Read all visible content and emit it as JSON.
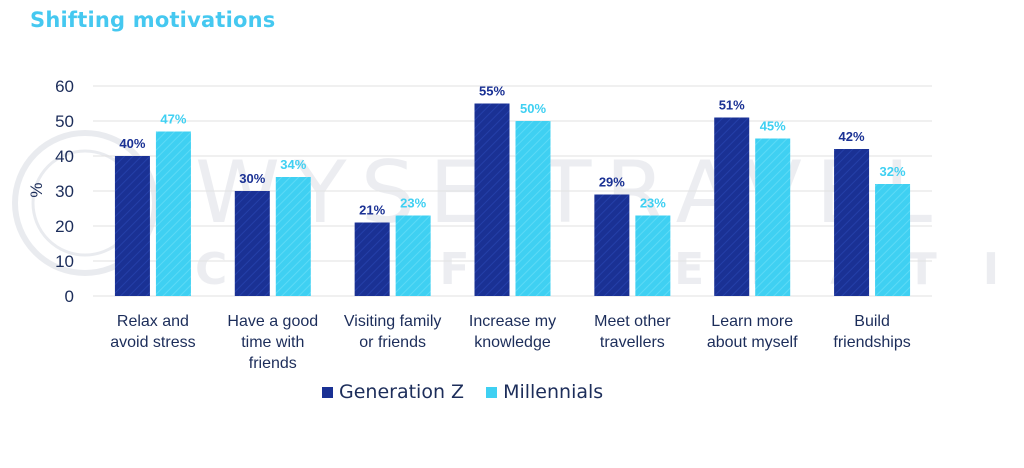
{
  "title": "Shifting motivations",
  "colors": {
    "gen_z": "#1a3194",
    "millennials": "#3fd0f2",
    "title": "#45c8f0",
    "axis_text": "#1c2d5a",
    "grid": "#e2e2e2"
  },
  "watermark": {
    "line1": "WYSE TRAVEL",
    "line2": "CONFEDERATION"
  },
  "chart_data": {
    "type": "bar",
    "title": "Shifting motivations",
    "ylabel": "%",
    "ylim": [
      0,
      60
    ],
    "yticks": [
      0,
      10,
      20,
      30,
      40,
      50,
      60
    ],
    "grid": true,
    "legend_position": "bottom-center",
    "categories": [
      [
        "Relax and",
        "avoid stress"
      ],
      [
        "Have a good",
        "time with",
        "friends"
      ],
      [
        "Visiting family",
        "or friends"
      ],
      [
        "Increase my",
        "knowledge"
      ],
      [
        "Meet other",
        "travellers"
      ],
      [
        "Learn more",
        "about myself"
      ],
      [
        "Build",
        "friendships"
      ]
    ],
    "series": [
      {
        "name": "Generation Z",
        "values": [
          40,
          30,
          21,
          55,
          29,
          51,
          42
        ],
        "labels": [
          "40%",
          "30%",
          "21%",
          "55%",
          "29%",
          "51%",
          "42%"
        ]
      },
      {
        "name": "Millennials",
        "values": [
          47,
          34,
          23,
          50,
          23,
          45,
          32
        ],
        "labels": [
          "47%",
          "34%",
          "23%",
          "50%",
          "23%",
          "45%",
          "32%"
        ]
      }
    ]
  }
}
